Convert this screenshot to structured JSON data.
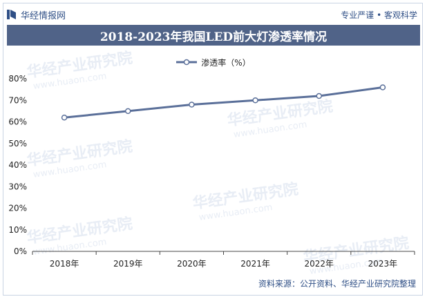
{
  "header": {
    "brand_name": "华经情报网",
    "slogan": "专业严谨 • 客观科学"
  },
  "watermark": {
    "text_cn": "华经产业研究院",
    "text_en": "www.huaon.com"
  },
  "source": "资料来源：公开资料、华经产业研究院整理",
  "colors": {
    "title_bg": "#506388",
    "line": "#5a6f99",
    "brand": "#2f4f86"
  },
  "chart_data": {
    "type": "line",
    "title": "2018-2023年我国LED前大灯渗透率情况",
    "categories": [
      "2018年",
      "2019年",
      "2020年",
      "2021年",
      "2022年",
      "2023年"
    ],
    "series": [
      {
        "name": "渗透率（%）",
        "values": [
          62,
          65,
          68,
          70,
          72,
          76
        ]
      }
    ],
    "yticks": [
      "0%",
      "10%",
      "20%",
      "30%",
      "40%",
      "50%",
      "60%",
      "70%",
      "80%"
    ],
    "ylim": [
      0,
      80
    ],
    "grid": false,
    "legend_position": "top-center"
  }
}
